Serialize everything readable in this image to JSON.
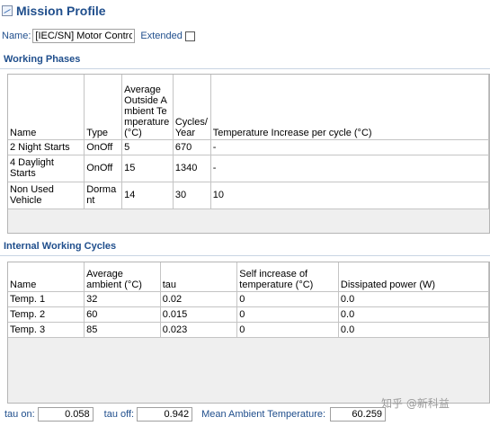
{
  "window": {
    "title": "Mission Profile"
  },
  "name_row": {
    "name_label": "Name:",
    "name_value": "[IEC/SN] Motor Control",
    "extended_label": "Extended",
    "extended_checked": false
  },
  "working_phases": {
    "section_title": "Working Phases",
    "columns": [
      "Name",
      "Type",
      "Average Outside Ambient Temperature (°C)",
      "Cycles/Year",
      "Temperature Increase per cycle (°C)"
    ],
    "rows": [
      {
        "name": "2 Night Starts",
        "type": "OnOff",
        "avg_temp": "5",
        "cycles": "670",
        "temp_increase": "-"
      },
      {
        "name": "4 Daylight Starts",
        "type": "OnOff",
        "avg_temp": "15",
        "cycles": "1340",
        "temp_increase": "-"
      },
      {
        "name": "Non Used Vehicle",
        "type": "Dormant",
        "avg_temp": "14",
        "cycles": "30",
        "temp_increase": "10"
      }
    ]
  },
  "internal_cycles": {
    "section_title": "Internal Working Cycles",
    "columns": [
      "Name",
      "Average ambient (°C)",
      "tau",
      "Self increase of temperature (°C)",
      "Dissipated power (W)"
    ],
    "rows": [
      {
        "name": "Temp. 1",
        "avg_ambient": "32",
        "tau": "0.02",
        "self_increase": "0",
        "power": "0.0"
      },
      {
        "name": "Temp. 2",
        "avg_ambient": "60",
        "tau": "0.015",
        "self_increase": "0",
        "power": "0.0"
      },
      {
        "name": "Temp. 3",
        "avg_ambient": "85",
        "tau": "0.023",
        "self_increase": "0",
        "power": "0.0"
      }
    ]
  },
  "bottom": {
    "tau_on_label": "tau on:",
    "tau_on_value": "0.058",
    "tau_off_label": "tau off:",
    "tau_off_value": "0.942",
    "mean_ambient_label": "Mean Ambient Temperature:",
    "mean_ambient_value": "60.259"
  },
  "watermark": "知乎 @新科益",
  "colors": {
    "accent": "#1f4e8c",
    "grid": "#c4c4c4",
    "frame_bg": "#efefef"
  }
}
